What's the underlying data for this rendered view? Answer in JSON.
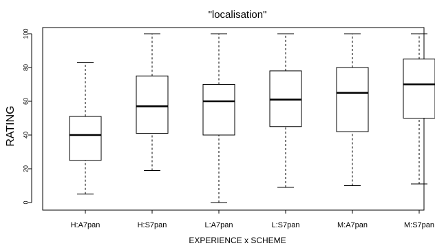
{
  "chart_data": {
    "type": "boxplot",
    "title": "\"localisation\"",
    "xlabel": "EXPERIENCE x SCHEME",
    "ylabel": "RATING",
    "ylim": [
      0,
      100
    ],
    "yticks": [
      0,
      20,
      40,
      60,
      80,
      100
    ],
    "grid": false,
    "categories": [
      "H:A7pan",
      "H:S7pan",
      "L:A7pan",
      "L:S7pan",
      "M:A7pan",
      "M:S7pan"
    ],
    "boxes": [
      {
        "category": "H:A7pan",
        "whisker_low": 5,
        "q1": 25,
        "median": 40,
        "q3": 51,
        "whisker_high": 83
      },
      {
        "category": "H:S7pan",
        "whisker_low": 19,
        "q1": 41,
        "median": 57,
        "q3": 75,
        "whisker_high": 100
      },
      {
        "category": "L:A7pan",
        "whisker_low": 0,
        "q1": 40,
        "median": 60,
        "q3": 70,
        "whisker_high": 100
      },
      {
        "category": "L:S7pan",
        "whisker_low": 9,
        "q1": 45,
        "median": 61,
        "q3": 78,
        "whisker_high": 100
      },
      {
        "category": "M:A7pan",
        "whisker_low": 10,
        "q1": 42,
        "median": 65,
        "q3": 80,
        "whisker_high": 100
      },
      {
        "category": "M:S7pan",
        "whisker_low": 11,
        "q1": 50,
        "median": 70,
        "q3": 85,
        "whisker_high": 100
      }
    ]
  }
}
